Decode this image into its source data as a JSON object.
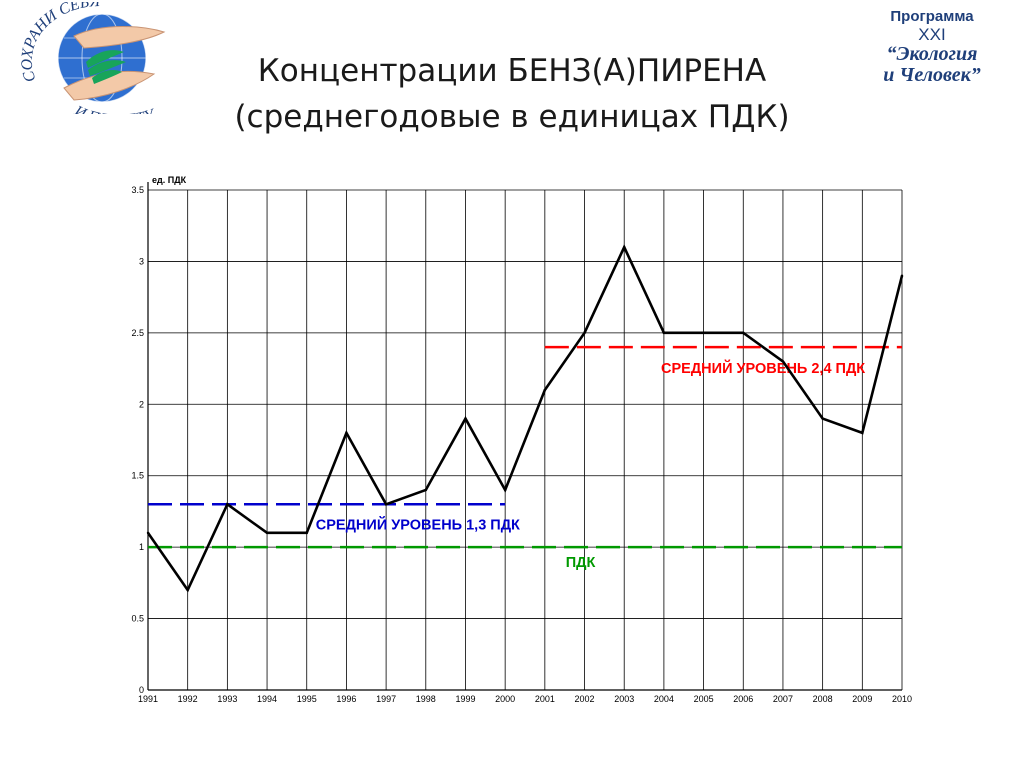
{
  "title": {
    "line1": "Концентрации БЕНЗ(А)ПИРЕНА",
    "line2": "(среднегодовые в единицах ПДК)"
  },
  "logo_left": {
    "text_top": "СОХРАНИ СЕБЯ",
    "text_bottom": "И ПЛАНЕТУ"
  },
  "logo_right": {
    "line1": "Программа",
    "line2": "XXI",
    "line3": "“Экология",
    "line4": "и Человек”"
  },
  "colors": {
    "series": "#000000",
    "avg_high": "#ff0000",
    "avg_low": "#0000cc",
    "pdk": "#009900",
    "grid": "#000000",
    "logo_blue": "#1f3f7a"
  },
  "chart_data": {
    "type": "line",
    "ylabel": "ед. ПДК",
    "xlabel": "",
    "ylim": [
      0,
      3.5
    ],
    "yticks": [
      0,
      0.5,
      1,
      1.5,
      2,
      2.5,
      3,
      3.5
    ],
    "ytick_labels": [
      "0",
      "0.5",
      "1",
      "1.5",
      "2",
      "2.5",
      "3",
      "3.5"
    ],
    "grid": true,
    "categories": [
      "1991",
      "1992",
      "1993",
      "1994",
      "1995",
      "1996",
      "1997",
      "1998",
      "1999",
      "2000",
      "2001",
      "2002",
      "2003",
      "2004",
      "2005",
      "2006",
      "2007",
      "2008",
      "2009",
      "2010"
    ],
    "values": [
      1.1,
      0.7,
      1.3,
      1.1,
      1.1,
      1.8,
      1.3,
      1.4,
      1.9,
      1.4,
      2.1,
      2.5,
      3.1,
      2.5,
      2.5,
      2.5,
      2.3,
      1.9,
      1.8,
      2.9
    ],
    "reference_lines": [
      {
        "label": "СРЕДНИЙ УРОВЕНЬ 1,3 ПДК",
        "value": 1.3,
        "x_from": "1991",
        "x_to": "2000",
        "color": "#0000cc"
      },
      {
        "label": "СРЕДНИЙ УРОВЕНЬ 2,4 ПДК",
        "value": 2.4,
        "x_from": "2001",
        "x_to": "2010",
        "color": "#ff0000"
      },
      {
        "label": "ПДК",
        "value": 1,
        "x_from": "1991",
        "x_to": "2010",
        "color": "#009900"
      }
    ]
  }
}
